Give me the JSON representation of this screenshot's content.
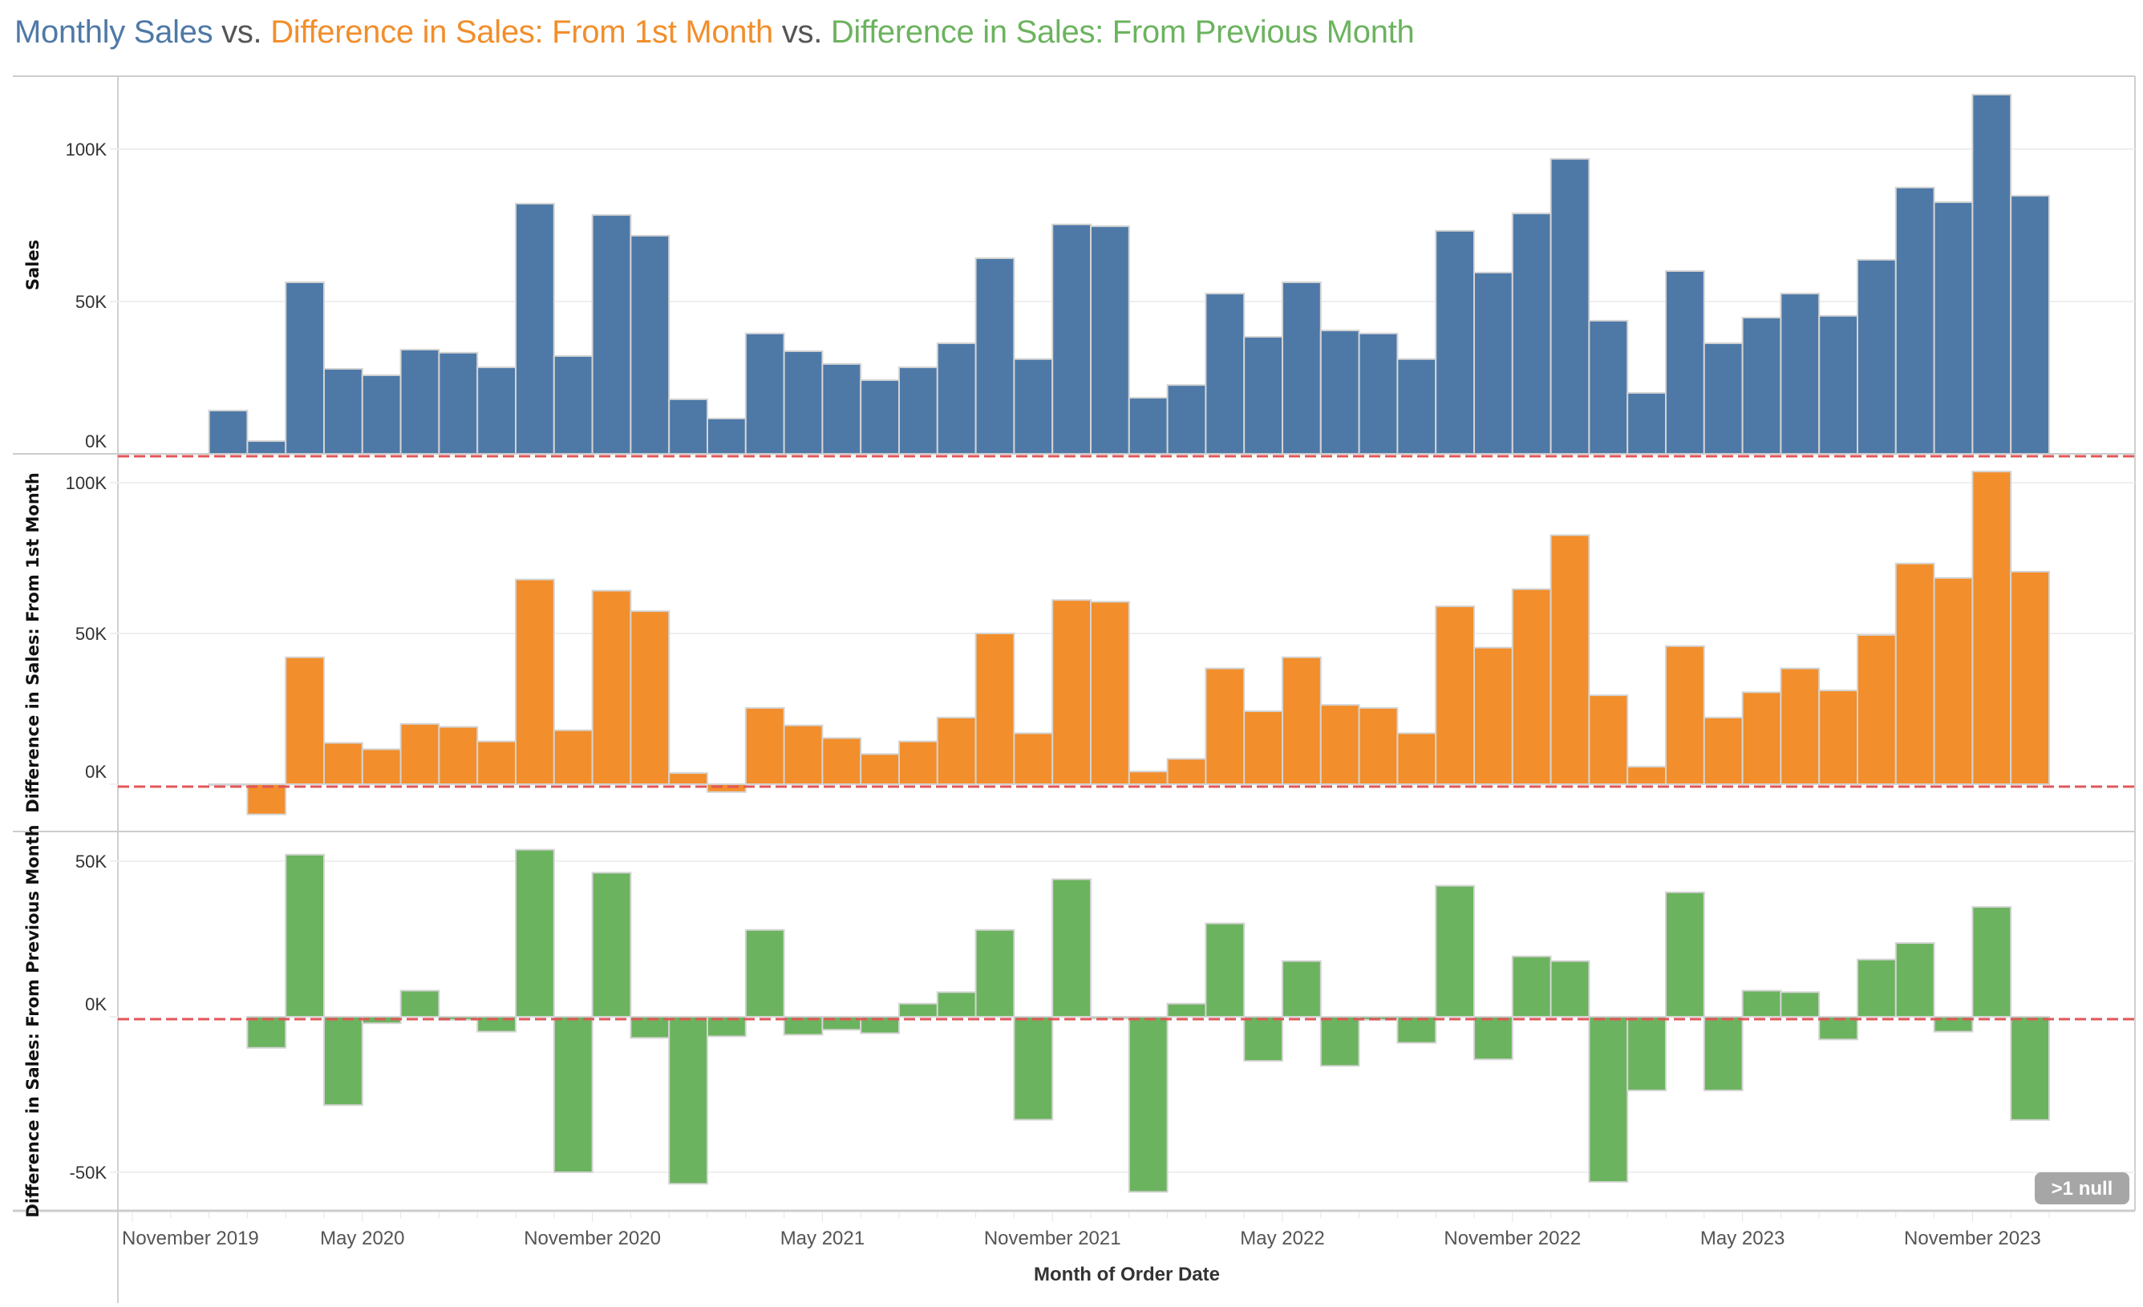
{
  "title": {
    "parts": [
      {
        "text": "Monthly Sales",
        "color": "#4e79a7"
      },
      {
        "text": " vs. ",
        "color": "#555555"
      },
      {
        "text": "Difference in Sales: From 1st Month",
        "color": "#f28e2b"
      },
      {
        "text": " vs. ",
        "color": "#555555"
      },
      {
        "text": "Difference in Sales: From Previous Month",
        "color": "#6cb35f"
      }
    ]
  },
  "null_indicator": ">1 null",
  "chart_data": {
    "type": "bar",
    "title": "Monthly Sales vs. Difference in Sales: From 1st Month vs. Difference in Sales: From Previous Month",
    "xlabel": "Month of Order Date",
    "x_tick_labels": [
      "November 2019",
      "May 2020",
      "November 2020",
      "May 2021",
      "November 2021",
      "May 2022",
      "November 2022",
      "May 2023",
      "November 2023"
    ],
    "categories": [
      "Jan 2020",
      "Feb 2020",
      "Mar 2020",
      "Apr 2020",
      "May 2020",
      "Jun 2020",
      "Jul 2020",
      "Aug 2020",
      "Sep 2020",
      "Oct 2020",
      "Nov 2020",
      "Dec 2020",
      "Jan 2021",
      "Feb 2021",
      "Mar 2021",
      "Apr 2021",
      "May 2021",
      "Jun 2021",
      "Jul 2021",
      "Aug 2021",
      "Sep 2021",
      "Oct 2021",
      "Nov 2021",
      "Dec 2021",
      "Jan 2022",
      "Feb 2022",
      "Mar 2022",
      "Apr 2022",
      "May 2022",
      "Jun 2022",
      "Jul 2022",
      "Aug 2022",
      "Sep 2022",
      "Oct 2022",
      "Nov 2022",
      "Dec 2022",
      "Jan 2023",
      "Feb 2023",
      "Mar 2023",
      "Apr 2023",
      "May 2023",
      "Jun 2023",
      "Jul 2023",
      "Aug 2023",
      "Sep 2023",
      "Oct 2023",
      "Nov 2023",
      "Dec 2023"
    ],
    "grid": true,
    "reference_line": {
      "value": 0,
      "color": "#e15759",
      "style": "dashed"
    },
    "panes": [
      {
        "name": "sales",
        "ylabel": "Sales",
        "color": "#4e79a7",
        "ylim": [
          0,
          122
        ],
        "y_ticks": [
          {
            "value": 0,
            "label": "0K"
          },
          {
            "value": 50,
            "label": "50K"
          },
          {
            "value": 100,
            "label": "100K"
          }
        ],
        "unit": "thousands",
        "values": [
          14.2,
          4.2,
          56.3,
          27.9,
          25.8,
          34.2,
          33.2,
          28.4,
          82.1,
          32.1,
          78.4,
          71.6,
          17.9,
          11.6,
          39.5,
          33.7,
          29.5,
          24.2,
          28.4,
          36.3,
          64.2,
          31.1,
          75.3,
          74.7,
          18.4,
          22.6,
          52.6,
          38.4,
          56.3,
          40.5,
          39.5,
          31.1,
          73.2,
          59.5,
          78.9,
          96.8,
          43.7,
          20.0,
          60.0,
          36.3,
          44.7,
          52.6,
          45.3,
          63.7,
          87.4,
          82.6,
          117.9,
          84.7
        ]
      },
      {
        "name": "diff-first",
        "ylabel": "Difference in Sales: From 1st Month",
        "color": "#f28e2b",
        "ylim": [
          -15,
          106
        ],
        "y_ticks": [
          {
            "value": 0,
            "label": "0K"
          },
          {
            "value": 50,
            "label": "50K"
          },
          {
            "value": 100,
            "label": "100K"
          }
        ],
        "unit": "thousands",
        "values": [
          0.0,
          -10.0,
          42.1,
          13.7,
          11.6,
          20.0,
          19.0,
          14.2,
          67.9,
          17.9,
          64.2,
          57.4,
          3.7,
          -2.6,
          25.3,
          19.5,
          15.3,
          10.0,
          14.2,
          22.1,
          50.0,
          16.9,
          61.1,
          60.5,
          4.2,
          8.4,
          38.4,
          24.2,
          42.1,
          26.3,
          25.3,
          16.9,
          59.0,
          45.3,
          64.7,
          82.6,
          29.5,
          5.8,
          45.8,
          22.1,
          30.5,
          38.4,
          31.1,
          49.5,
          73.2,
          68.4,
          103.7,
          70.5
        ]
      },
      {
        "name": "diff-previous",
        "ylabel": "Difference in Sales: From Previous Month",
        "color": "#6cb35f",
        "ylim": [
          -62,
          57
        ],
        "y_ticks": [
          {
            "value": -50,
            "label": "-50K"
          },
          {
            "value": 0,
            "label": "0K"
          },
          {
            "value": 50,
            "label": "50K"
          }
        ],
        "unit": "thousands",
        "values": [
          null,
          -10.0,
          52.1,
          -28.4,
          -2.1,
          8.4,
          -1.0,
          -4.8,
          53.7,
          -50.0,
          46.3,
          -6.8,
          -53.7,
          -6.3,
          27.9,
          -5.8,
          -4.2,
          -5.3,
          4.2,
          7.9,
          27.9,
          -33.1,
          44.2,
          -0.6,
          -56.3,
          4.2,
          30.0,
          -14.2,
          17.9,
          -15.8,
          -1.0,
          -8.4,
          42.1,
          -13.7,
          19.4,
          17.9,
          -53.1,
          -23.7,
          40.0,
          -23.7,
          8.4,
          7.9,
          -7.3,
          18.4,
          23.7,
          -4.8,
          35.3,
          -33.2
        ]
      }
    ]
  }
}
